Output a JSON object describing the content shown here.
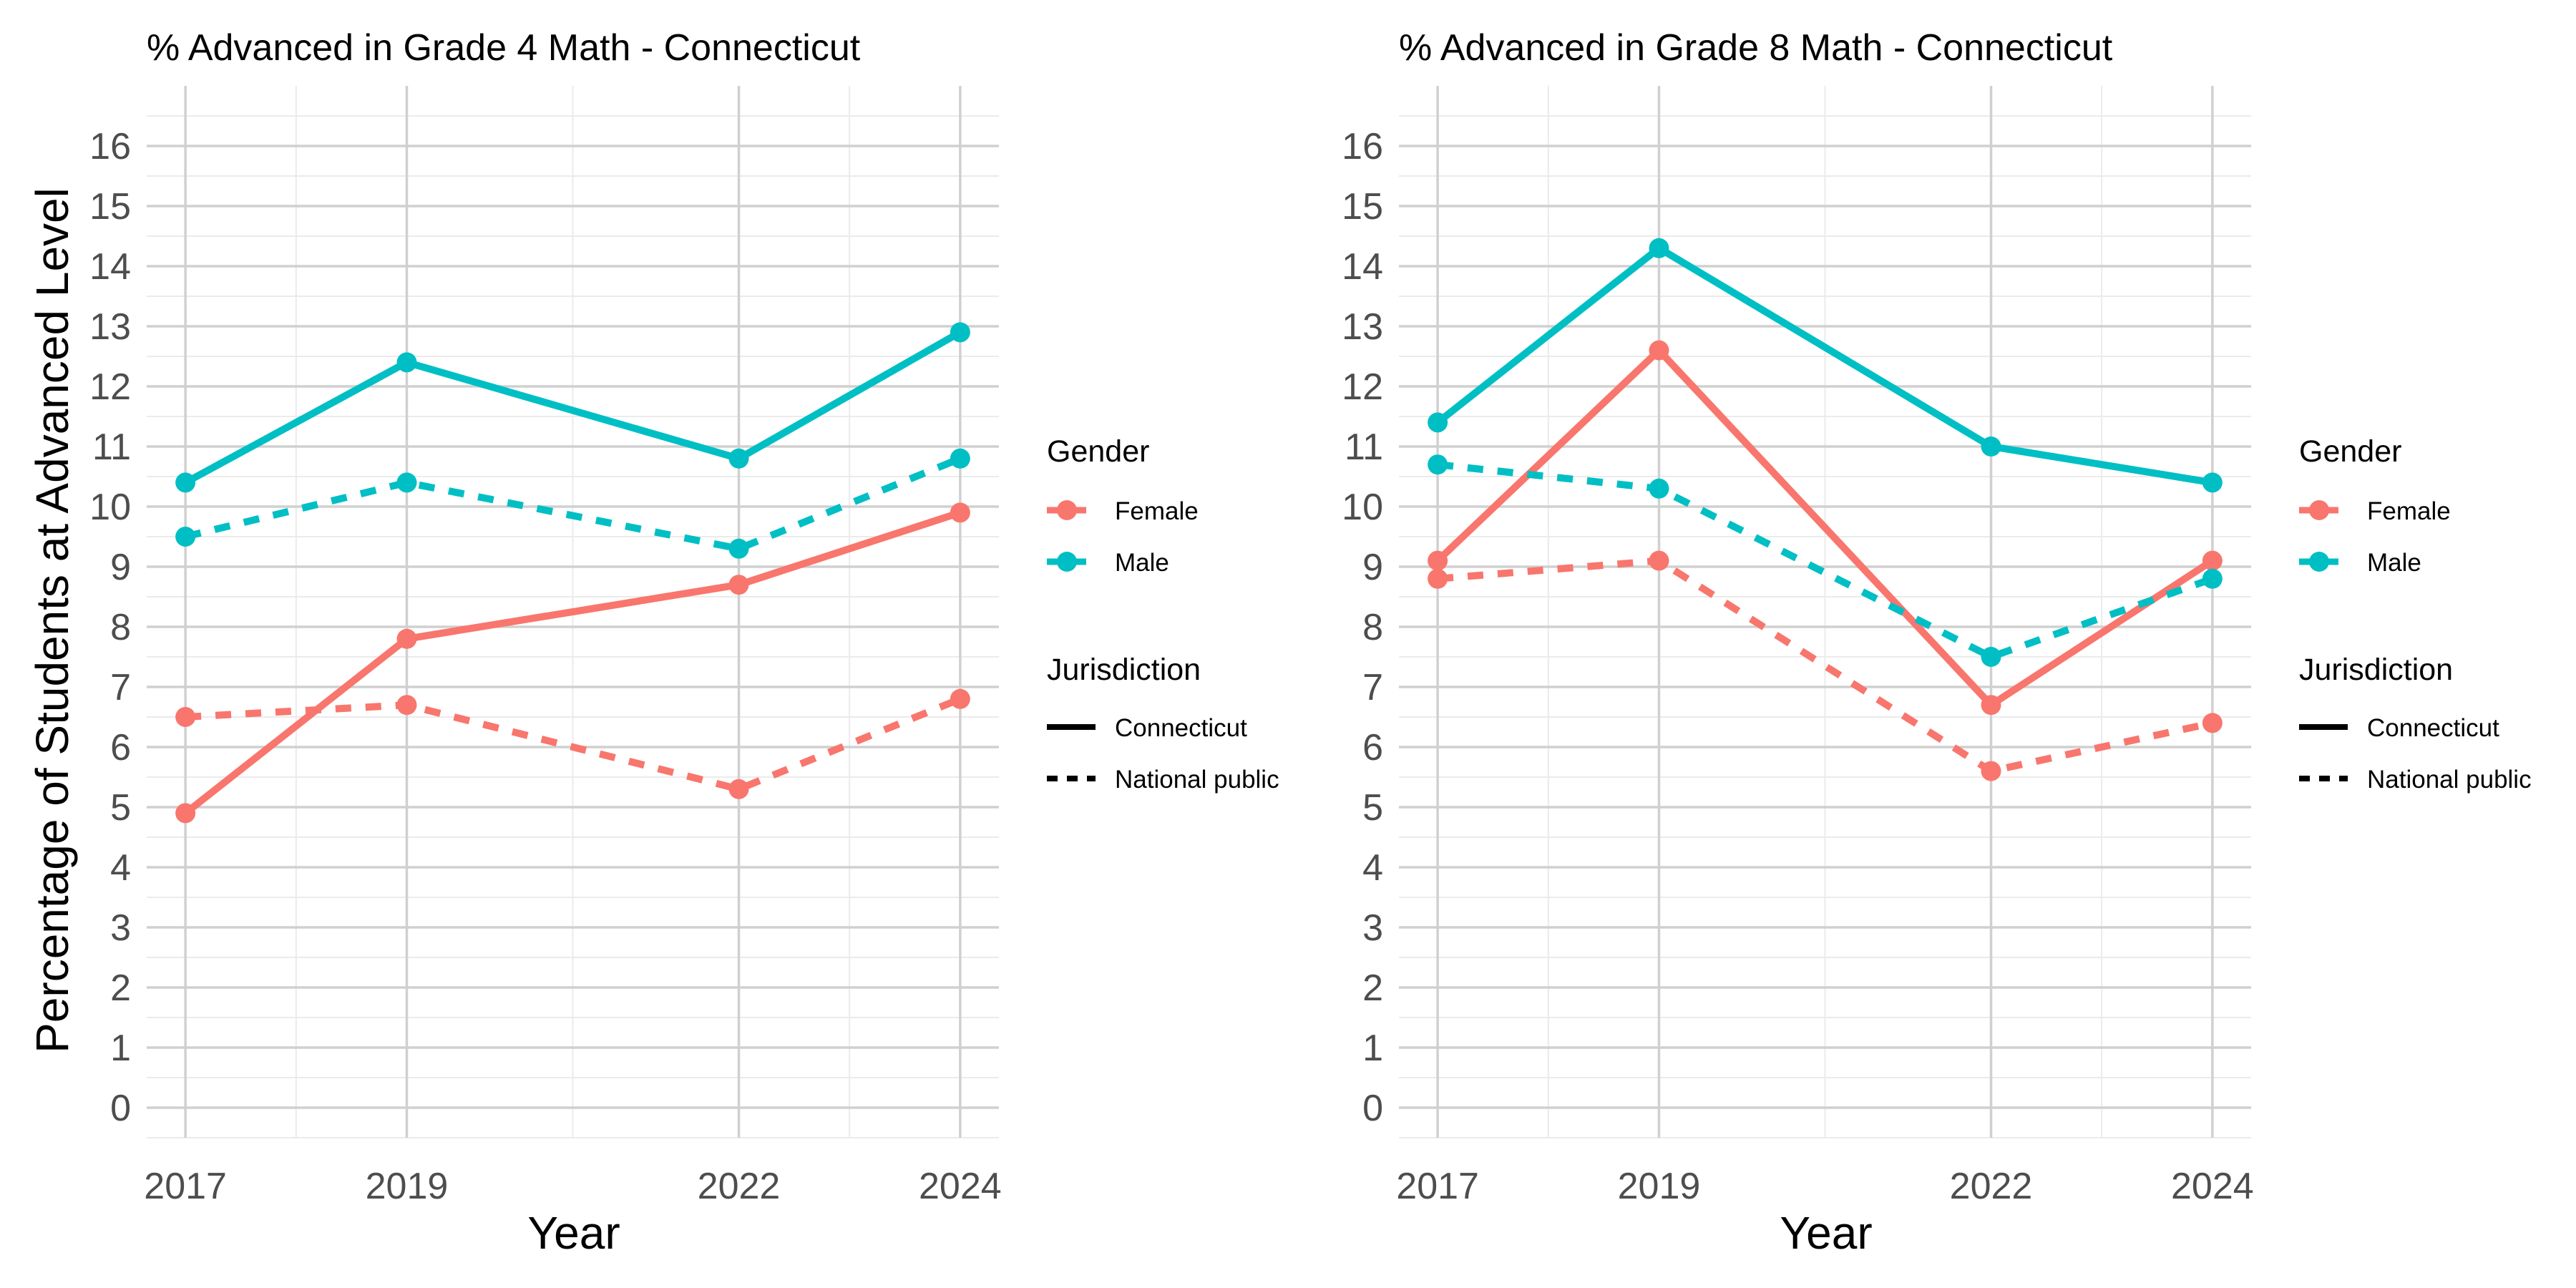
{
  "shared": {
    "ylabel": "Percentage of Students at Advanced Level",
    "legend_gender_title": "Gender",
    "legend_jurisdiction_title": "Jurisdiction",
    "colors": {
      "Female": "#F8766D",
      "Male": "#00BFC4"
    },
    "genders": [
      "Female",
      "Male"
    ],
    "jurisdictions": [
      "Connecticut",
      "National public"
    ]
  },
  "chart_data": [
    {
      "type": "line",
      "title": "% Advanced in Grade 4 Math - Connecticut",
      "xlabel": "Year",
      "ylabel": "Percentage of Students at Advanced Level",
      "x": [
        2017,
        2019,
        2022,
        2024
      ],
      "xlim": [
        2016.65,
        2024.35
      ],
      "ylim": [
        -0.5,
        17
      ],
      "yticks": [
        0,
        1,
        2,
        3,
        4,
        5,
        6,
        7,
        8,
        9,
        10,
        11,
        12,
        13,
        14,
        15,
        16
      ],
      "grid": true,
      "legend_position": "right",
      "series": [
        {
          "name": "Female",
          "gender": "Female",
          "jurisdiction": "Connecticut",
          "values": [
            4.9,
            7.8,
            8.7,
            9.9
          ]
        },
        {
          "name": "Male",
          "gender": "Male",
          "jurisdiction": "Connecticut",
          "values": [
            10.4,
            12.4,
            10.8,
            12.9
          ]
        },
        {
          "name": "Female",
          "gender": "Female",
          "jurisdiction": "National public",
          "values": [
            6.5,
            6.7,
            5.3,
            6.8
          ]
        },
        {
          "name": "Male",
          "gender": "Male",
          "jurisdiction": "National public",
          "values": [
            9.5,
            10.4,
            9.3,
            10.8
          ]
        }
      ]
    },
    {
      "type": "line",
      "title": "% Advanced in Grade 8 Math - Connecticut",
      "xlabel": "Year",
      "ylabel": "",
      "x": [
        2017,
        2019,
        2022,
        2024
      ],
      "xlim": [
        2016.65,
        2024.35
      ],
      "ylim": [
        -0.5,
        17
      ],
      "yticks": [
        0,
        1,
        2,
        3,
        4,
        5,
        6,
        7,
        8,
        9,
        10,
        11,
        12,
        13,
        14,
        15,
        16
      ],
      "grid": true,
      "legend_position": "right",
      "series": [
        {
          "name": "Female",
          "gender": "Female",
          "jurisdiction": "Connecticut",
          "values": [
            9.1,
            12.6,
            6.7,
            9.1
          ]
        },
        {
          "name": "Male",
          "gender": "Male",
          "jurisdiction": "Connecticut",
          "values": [
            11.4,
            14.3,
            11.0,
            10.4
          ]
        },
        {
          "name": "Female",
          "gender": "Female",
          "jurisdiction": "National public",
          "values": [
            8.8,
            9.1,
            5.6,
            6.4
          ]
        },
        {
          "name": "Male",
          "gender": "Male",
          "jurisdiction": "National public",
          "values": [
            10.7,
            10.3,
            7.5,
            8.8
          ]
        }
      ]
    }
  ]
}
